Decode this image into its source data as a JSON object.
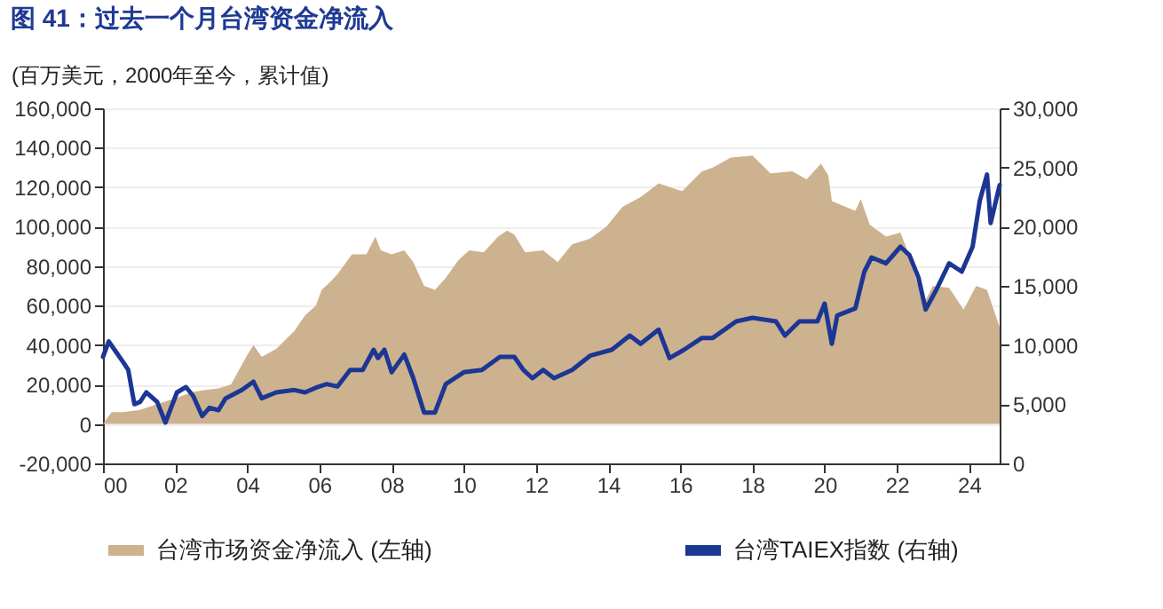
{
  "chart_data": {
    "type": "area",
    "title": "图 41：过去一个月台湾资金净流入",
    "ylabel": "(百万美元，2000年至今，累计值)",
    "xlim": [
      2000,
      2024.85
    ],
    "xticks": [
      {
        "value": 2000,
        "label": "00"
      },
      {
        "value": 2002,
        "label": "02"
      },
      {
        "value": 2004,
        "label": "04"
      },
      {
        "value": 2006,
        "label": "06"
      },
      {
        "value": 2008,
        "label": "08"
      },
      {
        "value": 2010,
        "label": "10"
      },
      {
        "value": 2012,
        "label": "12"
      },
      {
        "value": 2014,
        "label": "14"
      },
      {
        "value": 2016,
        "label": "16"
      },
      {
        "value": 2018,
        "label": "18"
      },
      {
        "value": 2020,
        "label": "20"
      },
      {
        "value": 2022,
        "label": "22"
      },
      {
        "value": 2024,
        "label": "24"
      }
    ],
    "ylim": [
      -20000,
      160000
    ],
    "yticks": [
      {
        "value": -20000,
        "label": "-20,000"
      },
      {
        "value": 0,
        "label": "0"
      },
      {
        "value": 20000,
        "label": "20,000"
      },
      {
        "value": 40000,
        "label": "40,000"
      },
      {
        "value": 60000,
        "label": "60,000"
      },
      {
        "value": 80000,
        "label": "80,000"
      },
      {
        "value": 100000,
        "label": "100,000"
      },
      {
        "value": 120000,
        "label": "120,000"
      },
      {
        "value": 140000,
        "label": "140,000"
      },
      {
        "value": 160000,
        "label": "160,000"
      }
    ],
    "y2lim": [
      0,
      30000
    ],
    "y2ticks": [
      {
        "value": 0,
        "label": "0"
      },
      {
        "value": 5000,
        "label": "5,000"
      },
      {
        "value": 10000,
        "label": "10,000"
      },
      {
        "value": 15000,
        "label": "15,000"
      },
      {
        "value": 20000,
        "label": "20,000"
      },
      {
        "value": 25000,
        "label": "25,000"
      },
      {
        "value": 30000,
        "label": "30,000"
      }
    ],
    "grid": "y",
    "legend": "bottom",
    "series": [
      {
        "name": "台湾市场资金净流入 (左轴)",
        "type": "area",
        "color": "#cdb28f",
        "x": [
          2000,
          2000.24,
          2000.55,
          2001,
          2001.5,
          2002,
          2002.45,
          2002.75,
          2003.2,
          2003.55,
          2004,
          2004.17,
          2004.4,
          2004.8,
          2005.3,
          2005.6,
          2005.9,
          2006.06,
          2006.3,
          2006.5,
          2006.9,
          2007.3,
          2007.55,
          2007.7,
          2008,
          2008.35,
          2008.6,
          2008.9,
          2009.2,
          2009.5,
          2009.85,
          2010.15,
          2010.55,
          2010.95,
          2011.2,
          2011.4,
          2011.7,
          2012.2,
          2012.6,
          2013,
          2013.5,
          2013.95,
          2014.4,
          2014.9,
          2015.4,
          2016.05,
          2016.6,
          2016.9,
          2017.4,
          2018,
          2018.5,
          2019.1,
          2019.5,
          2019.9,
          2020.1,
          2020.2,
          2020.85,
          2021,
          2021.25,
          2021.7,
          2022.1,
          2022.25,
          2022.75,
          2023,
          2023.45,
          2023.85,
          2024.2,
          2024.5,
          2024.85
        ],
        "values": [
          0,
          6000,
          6000,
          7000,
          10000,
          13000,
          16000,
          17000,
          18000,
          20000,
          35000,
          40000,
          34000,
          38000,
          47000,
          55000,
          60000,
          68000,
          72000,
          76000,
          86000,
          86000,
          95000,
          88000,
          86000,
          88000,
          82000,
          70000,
          68000,
          74000,
          83000,
          88000,
          87000,
          95000,
          98000,
          96000,
          87000,
          88000,
          82000,
          91000,
          94000,
          100000,
          110000,
          115000,
          122000,
          118000,
          128000,
          130000,
          135000,
          136000,
          127000,
          128000,
          124000,
          132000,
          126000,
          113000,
          108000,
          114000,
          101000,
          95000,
          97000,
          90000,
          61000,
          70000,
          69000,
          58000,
          70000,
          68000,
          49000
        ]
      },
      {
        "name": "台湾TAIEX指数 (右轴)",
        "type": "line",
        "axis": "y2",
        "color": "#1c3694",
        "x": [
          2000,
          2000.16,
          2000.32,
          2000.55,
          2000.7,
          2000.87,
          2001.03,
          2001.2,
          2001.5,
          2001.73,
          2002.05,
          2002.3,
          2002.5,
          2002.75,
          2002.95,
          2003.2,
          2003.4,
          2003.85,
          2004.17,
          2004.4,
          2004.8,
          2005.3,
          2005.6,
          2005.9,
          2006.2,
          2006.5,
          2006.85,
          2007.2,
          2007.5,
          2007.62,
          2007.8,
          2008,
          2008.35,
          2008.6,
          2008.9,
          2009.2,
          2009.5,
          2010,
          2010.5,
          2011,
          2011.4,
          2011.65,
          2011.9,
          2012.2,
          2012.5,
          2013,
          2013.5,
          2014.1,
          2014.6,
          2014.9,
          2015.4,
          2015.7,
          2016.1,
          2016.6,
          2016.9,
          2017.55,
          2018,
          2018.65,
          2018.9,
          2019.3,
          2019.8,
          2020,
          2020.2,
          2020.35,
          2020.6,
          2020.85,
          2021.1,
          2021.3,
          2021.7,
          2022.1,
          2022.35,
          2022.6,
          2022.8,
          2023.1,
          2023.45,
          2023.8,
          2024.1,
          2024.3,
          2024.5,
          2024.6,
          2024.85
        ],
        "values": [
          9000,
          10300,
          9600,
          8600,
          7900,
          5000,
          5200,
          6000,
          5200,
          3450,
          6000,
          6450,
          5700,
          4000,
          4700,
          4500,
          5500,
          6200,
          6900,
          5500,
          6000,
          6200,
          6000,
          6400,
          6700,
          6500,
          7900,
          7900,
          9600,
          8900,
          9600,
          7700,
          9200,
          7200,
          4300,
          4300,
          6700,
          7700,
          7900,
          9000,
          9000,
          7900,
          7200,
          7900,
          7200,
          7900,
          9100,
          9600,
          10800,
          10100,
          11300,
          8900,
          9600,
          10600,
          10600,
          12000,
          12300,
          12000,
          10800,
          12000,
          12000,
          13500,
          10100,
          12500,
          12800,
          13100,
          16200,
          17400,
          16900,
          18300,
          17600,
          15700,
          13000,
          14700,
          16900,
          16200,
          18300,
          22200,
          24400,
          20300,
          23500
        ]
      }
    ]
  }
}
